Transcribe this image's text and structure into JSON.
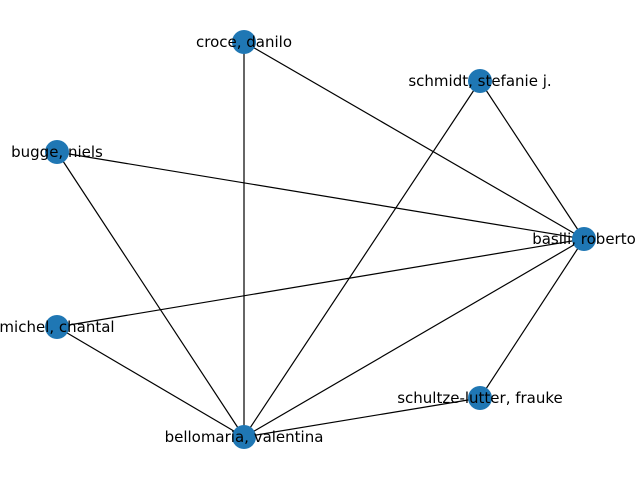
{
  "graph": {
    "node_color": "#1f77b4",
    "edge_color": "#000000",
    "nodes": [
      {
        "id": "croce",
        "label": "croce, danilo"
      },
      {
        "id": "schmidt",
        "label": "schmidt, stefanie j."
      },
      {
        "id": "bugge",
        "label": "bugge, niels"
      },
      {
        "id": "basili",
        "label": "basili, roberto"
      },
      {
        "id": "michel",
        "label": "michel, chantal"
      },
      {
        "id": "schultze",
        "label": "schultze-lutter, frauke"
      },
      {
        "id": "bellomaria",
        "label": "bellomaria, valentina"
      }
    ],
    "edges": [
      [
        "croce",
        "bellomaria"
      ],
      [
        "croce",
        "basili"
      ],
      [
        "schmidt",
        "bellomaria"
      ],
      [
        "schmidt",
        "basili"
      ],
      [
        "bugge",
        "basili"
      ],
      [
        "bugge",
        "bellomaria"
      ],
      [
        "michel",
        "basili"
      ],
      [
        "michel",
        "bellomaria"
      ],
      [
        "basili",
        "bellomaria"
      ],
      [
        "basili",
        "schultze"
      ],
      [
        "schultze",
        "bellomaria"
      ]
    ]
  }
}
